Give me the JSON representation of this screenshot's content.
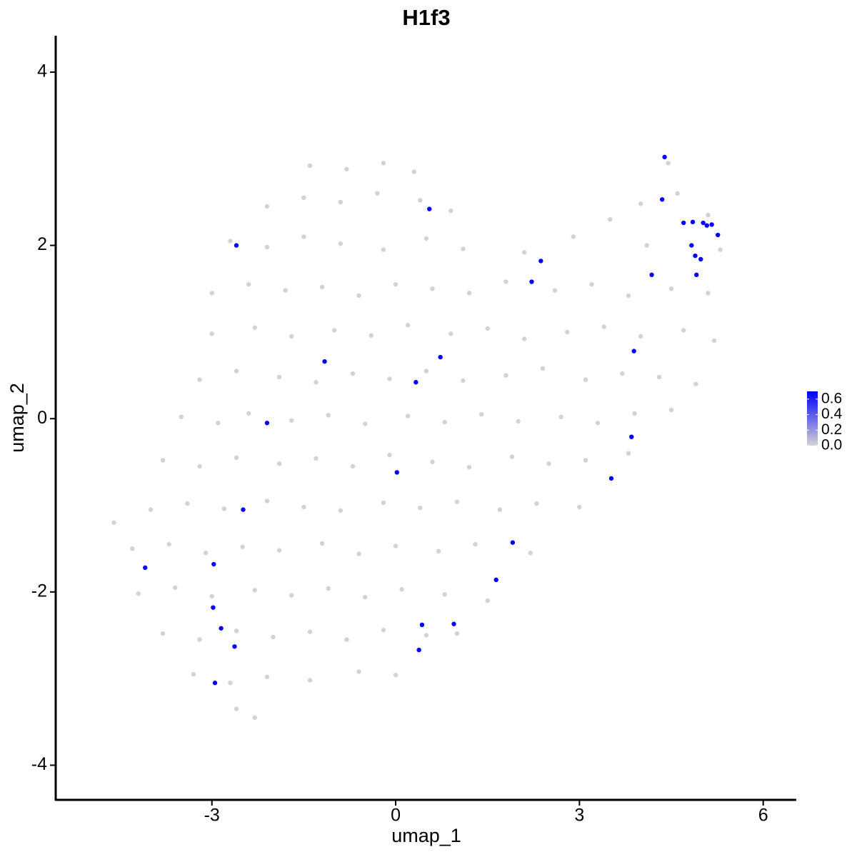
{
  "chart_data": {
    "type": "scatter",
    "title": "H1f3",
    "x_label": "umap_1",
    "y_label": "umap_2",
    "xlim": [
      -5.55,
      6.54
    ],
    "ylim": [
      -4.4,
      4.42
    ],
    "xticks": [
      -3,
      0,
      3,
      6
    ],
    "yticks": [
      -4,
      -2,
      0,
      2,
      4
    ],
    "x": [
      -1.4,
      -0.8,
      -0.2,
      0.3,
      4.45,
      -2.1,
      -1.5,
      -0.9,
      -0.3,
      0.4,
      0.9,
      4.0,
      4.6,
      5.1,
      -2.7,
      -2.1,
      -1.5,
      -0.9,
      -0.2,
      0.5,
      1.1,
      2.1,
      2.9,
      3.5,
      4.1,
      5.3,
      -3.0,
      -2.4,
      -1.8,
      -1.2,
      -0.6,
      0.0,
      0.6,
      1.2,
      1.8,
      2.6,
      3.2,
      3.8,
      4.5,
      5.1,
      -3.0,
      -2.3,
      -1.7,
      -1.0,
      -0.4,
      0.2,
      0.9,
      1.5,
      2.1,
      2.8,
      3.4,
      4.0,
      4.7,
      5.2,
      -3.2,
      -2.6,
      -1.9,
      -1.3,
      -0.7,
      -0.1,
      0.5,
      1.1,
      1.8,
      2.4,
      3.1,
      3.7,
      4.3,
      4.9,
      -3.5,
      -2.9,
      -2.4,
      -1.7,
      -1.1,
      -0.5,
      0.2,
      0.8,
      1.4,
      2.0,
      2.7,
      3.3,
      3.9,
      4.5,
      -3.8,
      -3.2,
      -2.6,
      -1.9,
      -1.3,
      -0.7,
      -0.1,
      0.6,
      1.2,
      1.9,
      2.5,
      3.1,
      3.8,
      -4.6,
      -4.0,
      -3.4,
      -2.8,
      -2.1,
      -1.5,
      -0.9,
      -0.2,
      0.4,
      1.0,
      1.7,
      2.3,
      3.0,
      -4.3,
      -3.7,
      -3.1,
      -2.5,
      -1.9,
      -1.2,
      -0.6,
      0.0,
      0.7,
      1.3,
      2.2,
      -4.2,
      -3.6,
      -3.0,
      -2.3,
      -1.7,
      -1.1,
      -0.5,
      0.1,
      0.8,
      1.5,
      -3.8,
      -3.2,
      -2.6,
      -2.0,
      -1.4,
      -0.8,
      -0.2,
      0.5,
      1.0,
      -3.3,
      -2.7,
      -2.1,
      -1.4,
      -0.6,
      0.0,
      -2.6,
      -2.3,
      4.39,
      4.35,
      0.55,
      -2.6,
      4.7,
      4.85,
      5.02,
      5.08,
      5.16,
      5.26,
      4.83,
      4.89,
      4.98,
      4.91,
      2.37,
      2.22,
      4.18,
      3.89,
      0.73,
      -1.16,
      0.33,
      -2.1,
      3.85,
      0.02,
      3.52,
      -2.49,
      1.91,
      -4.09,
      -2.97,
      1.64,
      -2.98,
      -2.85,
      0.43,
      0.95,
      -2.63,
      0.38,
      -2.95
    ],
    "y": [
      2.92,
      2.88,
      2.95,
      2.85,
      2.95,
      2.45,
      2.55,
      2.5,
      2.6,
      2.52,
      2.4,
      2.48,
      2.6,
      2.35,
      2.05,
      1.98,
      2.1,
      2.02,
      1.95,
      2.08,
      1.96,
      1.92,
      2.1,
      2.3,
      2.0,
      1.95,
      1.45,
      1.55,
      1.48,
      1.52,
      1.42,
      1.55,
      1.5,
      1.45,
      1.58,
      1.48,
      1.55,
      1.42,
      1.5,
      1.45,
      0.98,
      1.05,
      0.95,
      1.02,
      0.96,
      1.08,
      0.98,
      1.04,
      0.92,
      1.0,
      1.06,
      0.95,
      1.02,
      0.9,
      0.45,
      0.55,
      0.48,
      0.42,
      0.52,
      0.46,
      0.55,
      0.44,
      0.5,
      0.58,
      0.45,
      0.52,
      0.48,
      0.4,
      0.02,
      -0.05,
      0.06,
      -0.02,
      0.04,
      -0.06,
      0.03,
      -0.04,
      0.05,
      -0.03,
      0.02,
      -0.05,
      0.06,
      0.1,
      -0.48,
      -0.55,
      -0.45,
      -0.52,
      -0.46,
      -0.55,
      -0.42,
      -0.5,
      -0.56,
      -0.44,
      -0.52,
      -0.48,
      -0.4,
      -1.2,
      -1.05,
      -0.98,
      -1.04,
      -0.95,
      -1.02,
      -1.06,
      -0.97,
      -1.03,
      -0.96,
      -1.05,
      -0.98,
      -1.02,
      -1.5,
      -1.45,
      -1.55,
      -1.48,
      -1.52,
      -1.44,
      -1.56,
      -1.47,
      -1.53,
      -1.45,
      -1.55,
      -2.02,
      -1.95,
      -2.05,
      -1.98,
      -2.04,
      -1.96,
      -2.06,
      -1.97,
      -2.03,
      -2.1,
      -2.48,
      -2.55,
      -2.45,
      -2.52,
      -2.46,
      -2.55,
      -2.44,
      -2.5,
      -2.48,
      -2.95,
      -3.05,
      -2.98,
      -3.02,
      -2.92,
      -2.96,
      -3.35,
      -3.45,
      3.02,
      2.53,
      2.42,
      2.0,
      2.26,
      2.27,
      2.26,
      2.23,
      2.24,
      2.12,
      2.0,
      1.88,
      1.84,
      1.66,
      1.82,
      1.58,
      1.66,
      0.78,
      0.71,
      0.66,
      0.42,
      -0.05,
      -0.21,
      -0.62,
      -0.69,
      -1.05,
      -1.43,
      -1.72,
      -1.68,
      -1.86,
      -2.18,
      -2.42,
      -2.38,
      -2.37,
      -2.63,
      -2.67,
      -3.05
    ],
    "values": [
      0,
      0,
      0,
      0,
      0,
      0,
      0,
      0,
      0,
      0,
      0,
      0,
      0,
      0,
      0,
      0,
      0,
      0,
      0,
      0,
      0,
      0,
      0,
      0,
      0,
      0,
      0,
      0,
      0,
      0,
      0,
      0,
      0,
      0,
      0,
      0,
      0,
      0,
      0,
      0,
      0,
      0,
      0,
      0,
      0,
      0,
      0,
      0,
      0,
      0,
      0,
      0,
      0,
      0,
      0,
      0,
      0,
      0,
      0,
      0,
      0,
      0,
      0,
      0,
      0,
      0,
      0,
      0,
      0,
      0,
      0,
      0,
      0,
      0,
      0,
      0,
      0,
      0,
      0,
      0,
      0,
      0,
      0,
      0,
      0,
      0,
      0,
      0,
      0,
      0,
      0,
      0,
      0,
      0,
      0,
      0,
      0,
      0,
      0,
      0,
      0,
      0,
      0,
      0,
      0,
      0,
      0,
      0,
      0,
      0,
      0,
      0,
      0,
      0,
      0,
      0,
      0,
      0,
      0,
      0,
      0,
      0,
      0,
      0,
      0,
      0,
      0,
      0,
      0,
      0,
      0,
      0,
      0,
      0,
      0,
      0,
      0,
      0,
      0,
      0,
      0,
      0,
      0,
      0,
      0,
      0,
      0.69,
      0.69,
      0.69,
      0.69,
      0.69,
      0.69,
      0.69,
      0.69,
      0.69,
      0.69,
      0.69,
      0.69,
      0.69,
      0.69,
      0.69,
      0.69,
      0.69,
      0.69,
      0.69,
      0.69,
      0.69,
      0.69,
      0.69,
      0.69,
      0.69,
      0.69,
      0.69,
      0.69,
      0.69,
      0.69,
      0.69,
      0.69,
      0.69,
      0.69,
      0.69,
      0.69,
      0.69
    ],
    "colorbar": {
      "lim": [
        0,
        0.7
      ],
      "low_color": "#d3d3d3",
      "high_color": "#0000ff",
      "ticks": [
        {
          "value": 0,
          "label": "0.0"
        },
        {
          "value": 0.2,
          "label": "0.2"
        },
        {
          "value": 0.4,
          "label": "0.4"
        },
        {
          "value": 0.6,
          "label": "0.6"
        }
      ]
    }
  }
}
